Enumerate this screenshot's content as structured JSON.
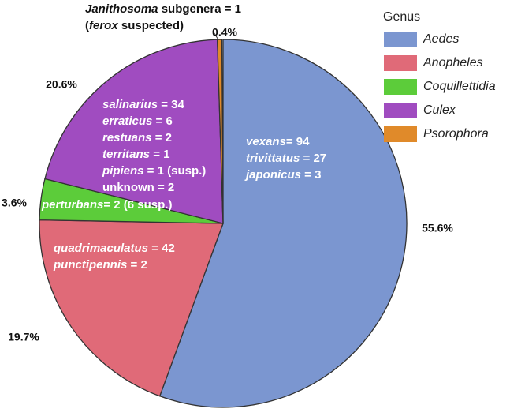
{
  "chart_data": {
    "type": "pie",
    "categories": [
      "Aedes",
      "Anopheles",
      "Coquillettidia",
      "Culex",
      "Psorophora"
    ],
    "values": [
      55.6,
      19.7,
      3.6,
      20.6,
      0.4
    ],
    "value_labels": [
      "55.6%",
      "19.7%",
      "3.6%",
      "20.6%",
      "0.4%"
    ],
    "colors": [
      "#7b96d0",
      "#e06a78",
      "#5ccc3a",
      "#a04cc0",
      "#e08a2a"
    ],
    "legend_title": "Genus",
    "legend": "top-right",
    "slice_notes": [
      [
        [
          {
            "text": "vexans",
            "italic": true
          },
          {
            "text": "= 94",
            "italic": false
          }
        ],
        [
          {
            "text": "trivittatus",
            "italic": true
          },
          {
            "text": " = 27",
            "italic": false
          }
        ],
        [
          {
            "text": "japonicus",
            "italic": true
          },
          {
            "text": " = 3",
            "italic": false
          }
        ]
      ],
      [
        [
          {
            "text": "quadrimaculatus",
            "italic": true
          },
          {
            "text": " = 42",
            "italic": false
          }
        ],
        [
          {
            "text": "punctipennis",
            "italic": true
          },
          {
            "text": " = 2",
            "italic": false
          }
        ]
      ],
      [
        [
          {
            "text": "perturbans",
            "italic": true
          },
          {
            "text": "= 2 (6 susp.)",
            "italic": false
          }
        ]
      ],
      [
        [
          {
            "text": "salinarius",
            "italic": true
          },
          {
            "text": " = 34",
            "italic": false
          }
        ],
        [
          {
            "text": "erraticus",
            "italic": true
          },
          {
            "text": " = 6",
            "italic": false
          }
        ],
        [
          {
            "text": "restuans",
            "italic": true
          },
          {
            "text": " = 2",
            "italic": false
          }
        ],
        [
          {
            "text": "territans",
            "italic": true
          },
          {
            "text": " = 1",
            "italic": false
          }
        ],
        [
          {
            "text": "pipiens",
            "italic": true
          },
          {
            "text": " = 1 (susp.)",
            "italic": false
          }
        ],
        [
          {
            "text": "unknown = 2",
            "italic": false
          }
        ]
      ],
      [
        [
          {
            "text": "Janithosoma",
            "italic": true
          },
          {
            "text": " subgenera = 1",
            "italic": false
          }
        ],
        [
          {
            "text": "(",
            "italic": false
          },
          {
            "text": "ferox",
            "italic": true
          },
          {
            "text": " suspected)",
            "italic": false
          }
        ]
      ]
    ]
  }
}
